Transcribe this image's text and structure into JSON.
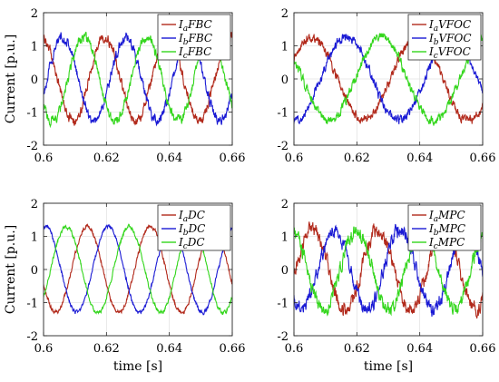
{
  "chart_data": [
    {
      "type": "line",
      "panel": "top-left",
      "xlabel": "",
      "ylabel": "Current [p.u.]",
      "xlim": [
        0.6,
        0.66
      ],
      "ylim": [
        -2,
        2
      ],
      "xticks": [
        0.6,
        0.62,
        0.64,
        0.66
      ],
      "yticks": [
        -2,
        -1,
        0,
        1,
        2
      ],
      "xtick_labels": [
        "0.6",
        "0.62",
        "0.64",
        "0.66"
      ],
      "ytick_labels": [
        "-2",
        "-1",
        "0",
        "1",
        "2"
      ],
      "grid": true,
      "legend_position": "top-right",
      "frequency_hz": 50,
      "series": [
        {
          "name": "I_aFBC",
          "legend_main": "I",
          "legend_sub": "a",
          "legend_rest": "FBC",
          "color": "#b22a1c",
          "amplitude": 1.25,
          "phase_deg": 100,
          "noise": 0.1
        },
        {
          "name": "I_bFBC",
          "legend_main": "I",
          "legend_sub": "b",
          "legend_rest": "FBC",
          "color": "#1a1ad4",
          "amplitude": 1.25,
          "phase_deg": -20,
          "noise": 0.1
        },
        {
          "name": "I_cFBC",
          "legend_main": "I",
          "legend_sub": "c",
          "legend_rest": "FBC",
          "color": "#33d61c",
          "amplitude": 1.25,
          "phase_deg": 220,
          "noise": 0.1
        }
      ]
    },
    {
      "type": "line",
      "panel": "top-right",
      "xlabel": "",
      "ylabel": "",
      "xlim": [
        0.6,
        0.66
      ],
      "ylim": [
        -2,
        2
      ],
      "xticks": [
        0.6,
        0.62,
        0.64,
        0.66
      ],
      "yticks": [
        -2,
        -1,
        0,
        1,
        2
      ],
      "xtick_labels": [
        "0.6",
        "0.62",
        "0.64",
        "0.66"
      ],
      "ytick_labels": [
        "-2",
        "-1",
        "0",
        "1",
        "2"
      ],
      "grid": true,
      "legend_position": "top-right",
      "frequency_hz": 30,
      "series": [
        {
          "name": "I_aVFOC",
          "legend_main": "I",
          "legend_sub": "a",
          "legend_rest": "VFOC",
          "color": "#b22a1c",
          "amplitude": 1.25,
          "phase_deg": 30,
          "noise": 0.09
        },
        {
          "name": "I_bVFOC",
          "legend_main": "I",
          "legend_sub": "b",
          "legend_rest": "VFOC",
          "color": "#1a1ad4",
          "amplitude": 1.25,
          "phase_deg": -90,
          "noise": 0.09
        },
        {
          "name": "I_cVFOC",
          "legend_main": "I",
          "legend_sub": "c",
          "legend_rest": "VFOC",
          "color": "#33d61c",
          "amplitude": 1.25,
          "phase_deg": 150,
          "noise": 0.09
        }
      ]
    },
    {
      "type": "line",
      "panel": "bottom-left",
      "xlabel": "time [s]",
      "ylabel": "Current [p.u.]",
      "xlim": [
        0.6,
        0.66
      ],
      "ylim": [
        -2,
        2
      ],
      "xticks": [
        0.6,
        0.62,
        0.64,
        0.66
      ],
      "yticks": [
        -2,
        -1,
        0,
        1,
        2
      ],
      "xtick_labels": [
        "0.6",
        "0.62",
        "0.64",
        "0.66"
      ],
      "ytick_labels": [
        "-2",
        "-1",
        "0",
        "1",
        "2"
      ],
      "grid": true,
      "legend_position": "top-right",
      "frequency_hz": 50,
      "series": [
        {
          "name": "I_aDC",
          "legend_main": "I",
          "legend_sub": "a",
          "legend_rest": "DC",
          "color": "#b22a1c",
          "amplitude": 1.3,
          "phase_deg": 200,
          "noise": 0.04
        },
        {
          "name": "I_bDC",
          "legend_main": "I",
          "legend_sub": "b",
          "legend_rest": "DC",
          "color": "#1a1ad4",
          "amplitude": 1.3,
          "phase_deg": 80,
          "noise": 0.04
        },
        {
          "name": "I_cDC",
          "legend_main": "I",
          "legend_sub": "c",
          "legend_rest": "DC",
          "color": "#33d61c",
          "amplitude": 1.3,
          "phase_deg": 320,
          "noise": 0.04
        }
      ]
    },
    {
      "type": "line",
      "panel": "bottom-right",
      "xlabel": "time [s]",
      "ylabel": "",
      "xlim": [
        0.6,
        0.66
      ],
      "ylim": [
        -2,
        2
      ],
      "xticks": [
        0.6,
        0.62,
        0.64,
        0.66
      ],
      "yticks": [
        -2,
        -1,
        0,
        1,
        2
      ],
      "xtick_labels": [
        "0.6",
        "0.62",
        "0.64",
        "0.66"
      ],
      "ytick_labels": [
        "-2",
        "-1",
        "0",
        "1",
        "2"
      ],
      "grid": true,
      "legend_position": "top-right",
      "frequency_hz": 48,
      "series": [
        {
          "name": "I_aMPC",
          "legend_main": "I",
          "legend_sub": "a",
          "legend_rest": "MPC",
          "color": "#b22a1c",
          "amplitude": 1.2,
          "phase_deg": 60,
          "noise": 0.14
        },
        {
          "name": "I_bMPC",
          "legend_main": "I",
          "legend_sub": "b",
          "legend_rest": "MPC",
          "color": "#1a1ad4",
          "amplitude": 1.2,
          "phase_deg": -60,
          "noise": 0.14
        },
        {
          "name": "I_cMPC",
          "legend_main": "I",
          "legend_sub": "c",
          "legend_rest": "MPC",
          "color": "#33d61c",
          "amplitude": 1.2,
          "phase_deg": 180,
          "noise": 0.14
        }
      ]
    }
  ]
}
